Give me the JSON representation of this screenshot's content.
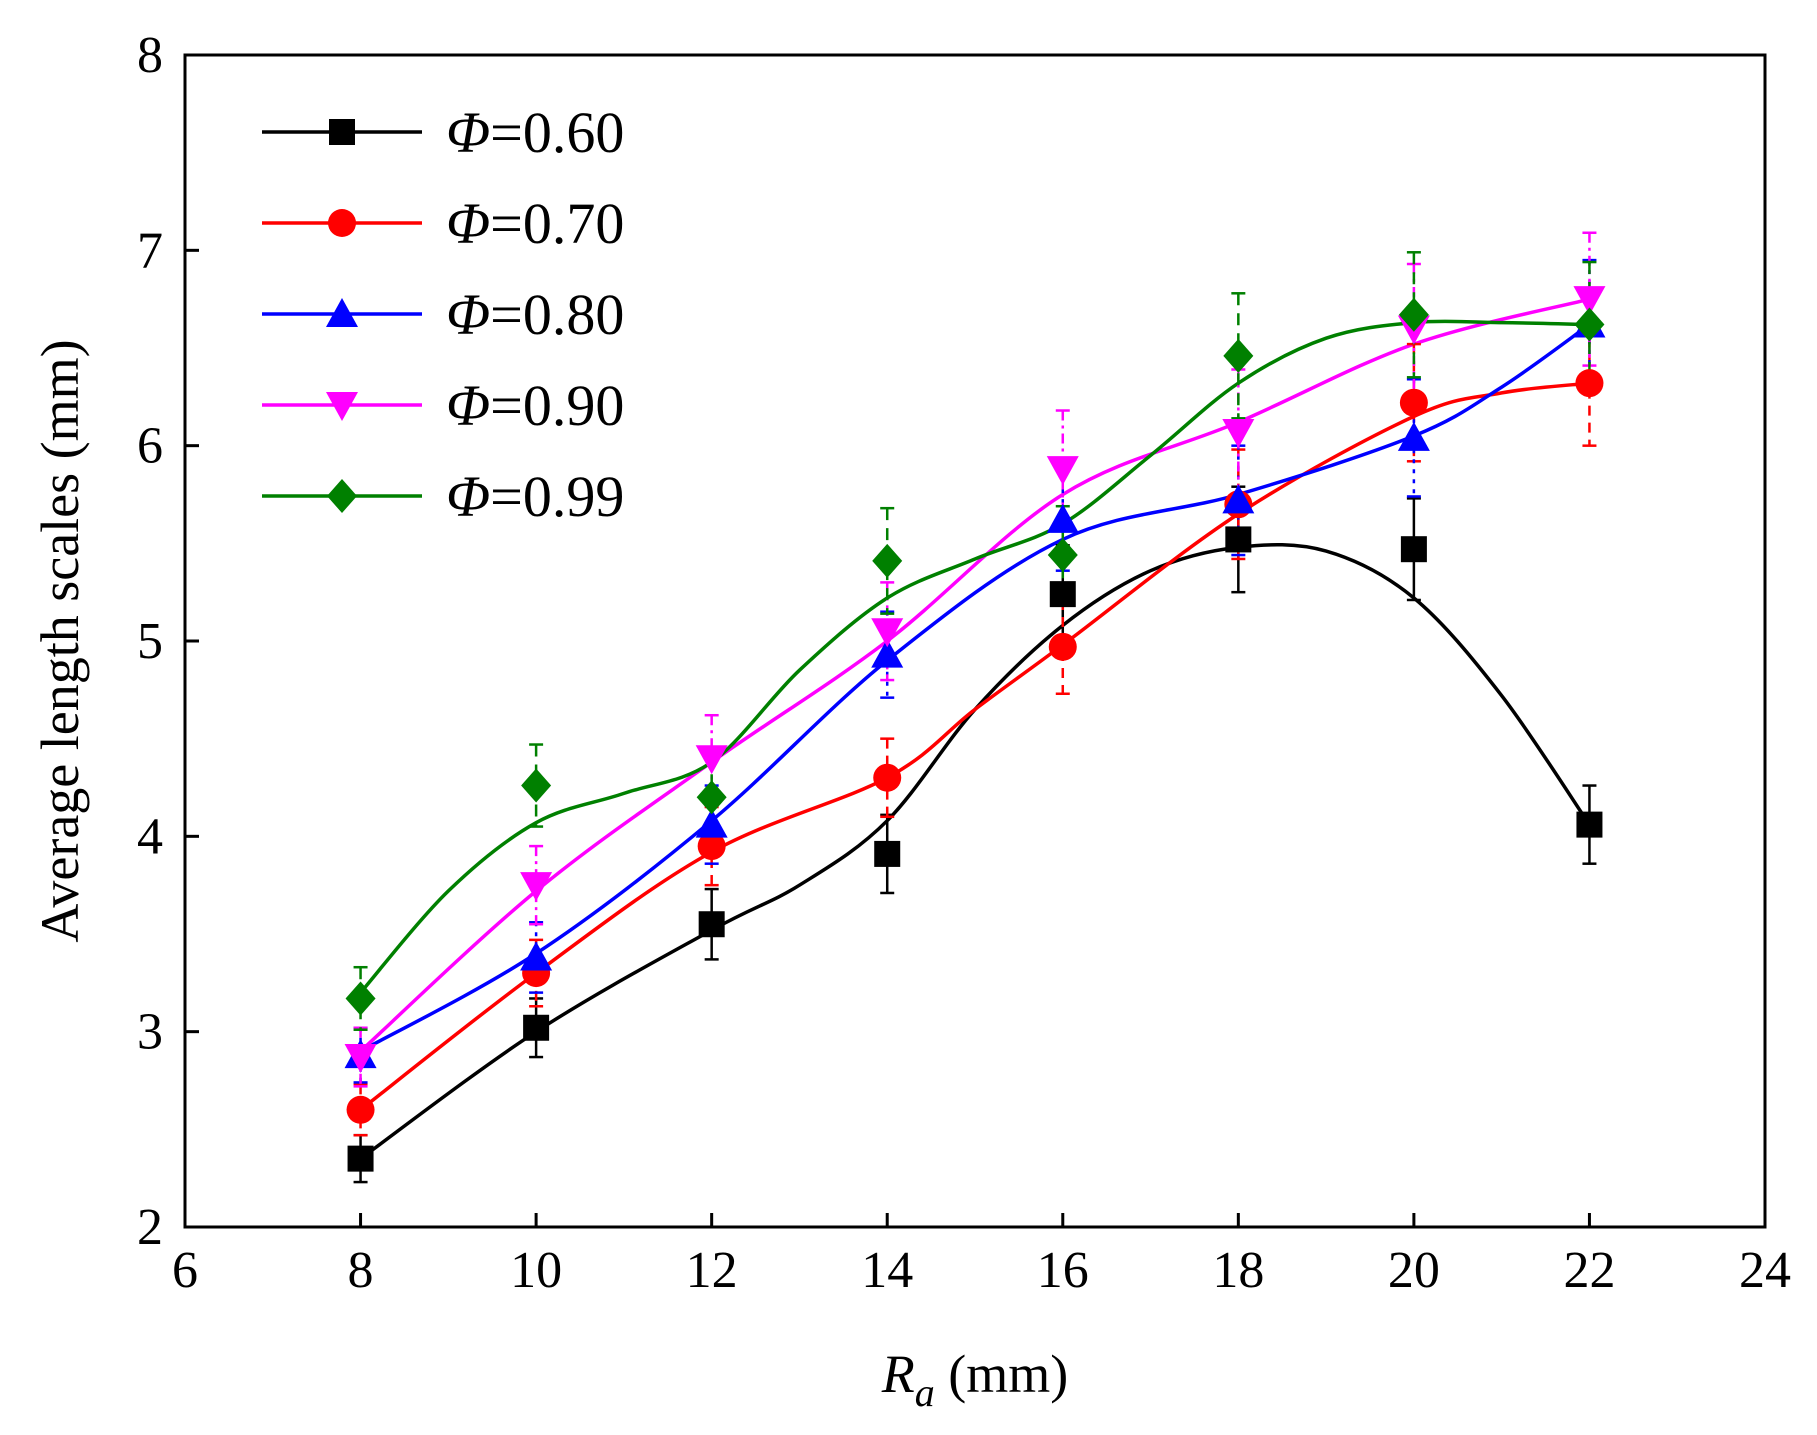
{
  "chart_data": {
    "type": "line",
    "title": "",
    "xlabel_main": "R",
    "xlabel_sub": "a",
    "xlabel_unit": " (mm)",
    "ylabel": "Average length scales (mm)",
    "xlim": [
      6,
      24
    ],
    "ylim": [
      2,
      8
    ],
    "xticks": [
      6,
      8,
      10,
      12,
      14,
      16,
      18,
      20,
      22,
      24
    ],
    "yticks": [
      2,
      3,
      4,
      5,
      6,
      7,
      8
    ],
    "grid": false,
    "legend_position": "top-left",
    "x": [
      8,
      10,
      12,
      14,
      16,
      18,
      20,
      22
    ],
    "series": [
      {
        "name": "Φ=0.60",
        "symbol": "Φ",
        "value_text": "=0.60",
        "color": "#000000",
        "marker": "square",
        "values": [
          2.35,
          3.02,
          3.55,
          3.91,
          5.24,
          5.52,
          5.47,
          4.06
        ],
        "errors": [
          0.12,
          0.15,
          0.18,
          0.2,
          0.25,
          0.27,
          0.26,
          0.2
        ],
        "fit": [
          [
            8,
            2.35
          ],
          [
            10,
            3.0
          ],
          [
            12,
            3.52
          ],
          [
            13,
            3.75
          ],
          [
            14,
            4.08
          ],
          [
            15,
            4.65
          ],
          [
            16,
            5.08
          ],
          [
            17,
            5.36
          ],
          [
            18,
            5.48
          ],
          [
            19,
            5.46
          ],
          [
            20,
            5.22
          ],
          [
            21,
            4.72
          ],
          [
            22,
            4.06
          ]
        ]
      },
      {
        "name": "Φ=0.70",
        "symbol": "Φ",
        "value_text": "=0.70",
        "color": "#ff0000",
        "marker": "circle",
        "values": [
          2.6,
          3.3,
          3.95,
          4.3,
          4.97,
          5.7,
          6.22,
          6.32
        ],
        "errors": [
          0.13,
          0.17,
          0.2,
          0.2,
          0.24,
          0.28,
          0.3,
          0.32
        ],
        "fit": [
          [
            8,
            2.6
          ],
          [
            10,
            3.3
          ],
          [
            12,
            3.92
          ],
          [
            14,
            4.3
          ],
          [
            15,
            4.65
          ],
          [
            16,
            4.98
          ],
          [
            18,
            5.65
          ],
          [
            20,
            6.15
          ],
          [
            21,
            6.27
          ],
          [
            22,
            6.32
          ]
        ]
      },
      {
        "name": "Φ=0.80",
        "symbol": "Φ",
        "value_text": "=0.80",
        "color": "#0000ff",
        "marker": "triangle-up",
        "values": [
          2.88,
          3.38,
          4.06,
          4.93,
          5.62,
          5.72,
          6.04,
          6.62
        ],
        "errors": [
          0.14,
          0.18,
          0.2,
          0.22,
          0.26,
          0.28,
          0.3,
          0.33
        ],
        "fit": [
          [
            8,
            2.9
          ],
          [
            10,
            3.4
          ],
          [
            12,
            4.08
          ],
          [
            14,
            4.9
          ],
          [
            16,
            5.52
          ],
          [
            18,
            5.75
          ],
          [
            20,
            6.05
          ],
          [
            21,
            6.3
          ],
          [
            22,
            6.62
          ]
        ]
      },
      {
        "name": "Φ=0.90",
        "symbol": "Φ",
        "value_text": "=0.90",
        "color": "#ff00ff",
        "marker": "triangle-down",
        "values": [
          2.87,
          3.75,
          4.4,
          5.05,
          5.88,
          6.07,
          6.6,
          6.75
        ],
        "errors": [
          0.15,
          0.2,
          0.22,
          0.25,
          0.3,
          0.32,
          0.33,
          0.34
        ],
        "fit": [
          [
            8,
            2.9
          ],
          [
            10,
            3.72
          ],
          [
            12,
            4.38
          ],
          [
            14,
            5.0
          ],
          [
            16,
            5.75
          ],
          [
            18,
            6.12
          ],
          [
            20,
            6.52
          ],
          [
            22,
            6.75
          ]
        ]
      },
      {
        "name": "Φ=0.99",
        "symbol": "Φ",
        "value_text": "=0.99",
        "color": "#008000",
        "marker": "diamond",
        "values": [
          3.17,
          4.26,
          4.2,
          5.41,
          5.44,
          6.46,
          6.67,
          6.62
        ],
        "errors": [
          0.16,
          0.21,
          0.22,
          0.27,
          0.25,
          0.32,
          0.32,
          0.32
        ],
        "fit": [
          [
            8,
            3.2
          ],
          [
            9,
            3.72
          ],
          [
            10,
            4.07
          ],
          [
            11,
            4.22
          ],
          [
            12,
            4.38
          ],
          [
            13,
            4.85
          ],
          [
            14,
            5.22
          ],
          [
            15,
            5.42
          ],
          [
            16,
            5.6
          ],
          [
            17,
            5.95
          ],
          [
            18,
            6.32
          ],
          [
            19,
            6.55
          ],
          [
            20,
            6.63
          ],
          [
            21,
            6.63
          ],
          [
            22,
            6.62
          ]
        ]
      }
    ]
  }
}
